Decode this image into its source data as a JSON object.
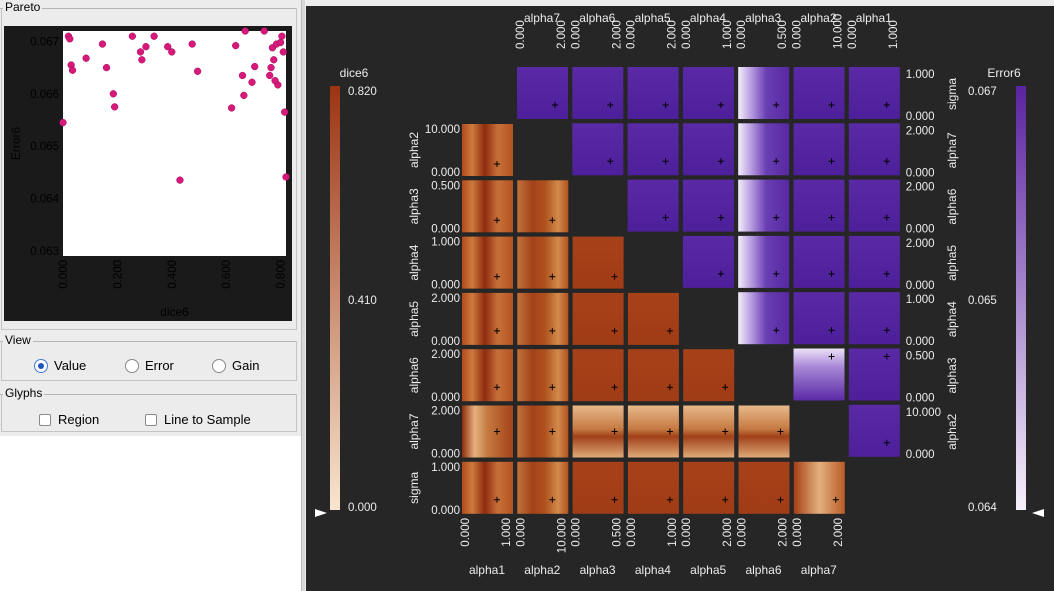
{
  "pareto": {
    "title": "Pareto",
    "xlabel": "dice6",
    "ylabel": "Error6",
    "x_ticks": [
      "0.000",
      "0.200",
      "0.400",
      "0.600",
      "0.800"
    ],
    "y_ticks": [
      "0.067",
      "0.066",
      "0.065",
      "0.064",
      "0.063"
    ],
    "point_color": "#d6197a"
  },
  "chart_data": {
    "type": "scatter",
    "title": "Pareto",
    "xlabel": "dice6",
    "ylabel": "Error6",
    "xlim": [
      0.0,
      0.82
    ],
    "ylim": [
      0.0629,
      0.0672
    ],
    "points": [
      [
        0.0,
        0.06545
      ],
      [
        0.02,
        0.0671
      ],
      [
        0.025,
        0.06705
      ],
      [
        0.03,
        0.06655
      ],
      [
        0.035,
        0.06645
      ],
      [
        0.085,
        0.06668
      ],
      [
        0.145,
        0.06695
      ],
      [
        0.16,
        0.0665
      ],
      [
        0.185,
        0.066
      ],
      [
        0.19,
        0.06575
      ],
      [
        0.255,
        0.0671
      ],
      [
        0.285,
        0.0668
      ],
      [
        0.29,
        0.06665
      ],
      [
        0.305,
        0.0669
      ],
      [
        0.335,
        0.0671
      ],
      [
        0.385,
        0.0669
      ],
      [
        0.4,
        0.0668
      ],
      [
        0.43,
        0.06435
      ],
      [
        0.475,
        0.06695
      ],
      [
        0.495,
        0.06643
      ],
      [
        0.62,
        0.06573
      ],
      [
        0.635,
        0.06692
      ],
      [
        0.67,
        0.0672
      ],
      [
        0.66,
        0.06635
      ],
      [
        0.665,
        0.06597
      ],
      [
        0.695,
        0.06622
      ],
      [
        0.705,
        0.06652
      ],
      [
        0.74,
        0.0672
      ],
      [
        0.76,
        0.06635
      ],
      [
        0.765,
        0.0665
      ],
      [
        0.77,
        0.06688
      ],
      [
        0.785,
        0.06695
      ],
      [
        0.79,
        0.06617
      ],
      [
        0.8,
        0.06698
      ],
      [
        0.805,
        0.0671
      ],
      [
        0.81,
        0.0668
      ],
      [
        0.815,
        0.06565
      ],
      [
        0.82,
        0.06441
      ],
      [
        0.775,
        0.06665
      ],
      [
        0.78,
        0.06625
      ]
    ]
  },
  "view": {
    "title": "View",
    "options": [
      "Value",
      "Error",
      "Gain"
    ],
    "selected": "Value"
  },
  "glyphs": {
    "title": "Glyphs",
    "options": [
      "Region",
      "Line to Sample"
    ]
  },
  "matrix": {
    "params": [
      "sigma",
      "alpha1",
      "alpha2",
      "alpha3",
      "alpha4",
      "alpha5",
      "alpha6",
      "alpha7"
    ],
    "bottom_labels": [
      "alpha1",
      "alpha2",
      "alpha3",
      "alpha4",
      "alpha5",
      "alpha6",
      "alpha7"
    ],
    "top_labels": [
      "alpha7",
      "alpha6",
      "alpha5",
      "alpha4",
      "alpha3",
      "alpha2",
      "alpha1"
    ],
    "left_labels": [
      "alpha2",
      "alpha3",
      "alpha4",
      "alpha5",
      "alpha6",
      "alpha7",
      "sigma"
    ],
    "right_labels": [
      "sigma",
      "alpha7",
      "alpha6",
      "alpha5",
      "alpha4",
      "alpha3",
      "alpha2"
    ],
    "left_ranges": [
      [
        "10.000",
        "0.000"
      ],
      [
        "0.500",
        "0.000"
      ],
      [
        "1.000",
        "0.000"
      ],
      [
        "2.000",
        "0.000"
      ],
      [
        "2.000",
        "0.000"
      ],
      [
        "2.000",
        "0.000"
      ],
      [
        "1.000",
        "0.000"
      ]
    ],
    "right_ranges": [
      [
        "1.000",
        "0.000"
      ],
      [
        "2.000",
        "0.000"
      ],
      [
        "2.000",
        "0.000"
      ],
      [
        "2.000",
        "0.000"
      ],
      [
        "1.000",
        "0.000"
      ],
      [
        "0.500",
        "0.000"
      ],
      [
        "10.000",
        "0.000"
      ]
    ],
    "bottom_ranges": [
      [
        "0.000",
        "1.000"
      ],
      [
        "0.000",
        "10.000"
      ],
      [
        "0.000",
        "0.500"
      ],
      [
        "0.000",
        "1.000"
      ],
      [
        "0.000",
        "2.000"
      ],
      [
        "0.000",
        "2.000"
      ],
      [
        "0.000",
        "2.000"
      ]
    ],
    "top_ranges": [
      [
        "0.000",
        "2.000"
      ],
      [
        "0.000",
        "2.000"
      ],
      [
        "0.000",
        "2.000"
      ],
      [
        "0.000",
        "1.000"
      ],
      [
        "0.000",
        "0.500"
      ],
      [
        "0.000",
        "10.000"
      ],
      [
        "0.000",
        "1.000"
      ]
    ]
  },
  "colorbar_left": {
    "label": "dice6",
    "ticks": [
      "0.820",
      "0.410",
      "0.000"
    ],
    "color_low": "#f9e5cf",
    "color_high": "#9c3412"
  },
  "colorbar_right": {
    "label": "Error6",
    "ticks": [
      "0.067",
      "0.065",
      "0.064"
    ],
    "color_low": "#f6f0fb",
    "color_high": "#5a23a0"
  }
}
